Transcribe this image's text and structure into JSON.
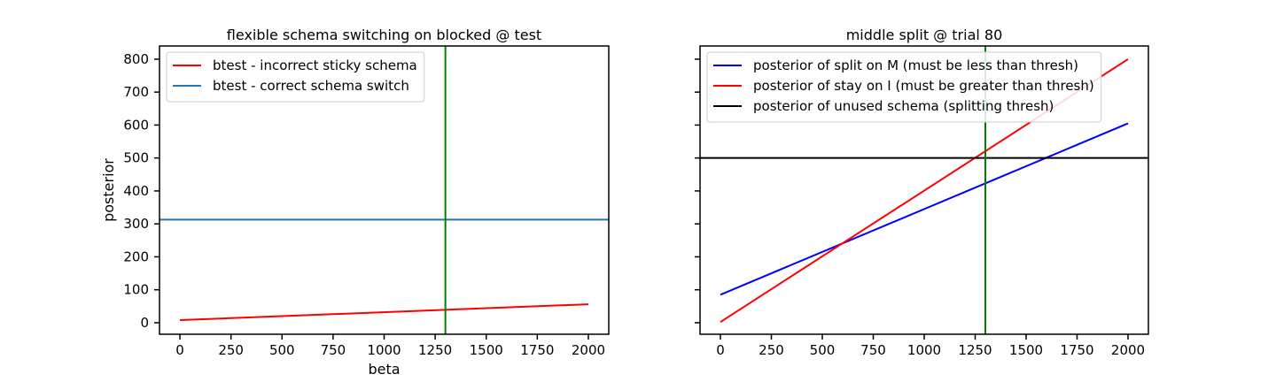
{
  "chart_data": [
    {
      "type": "line",
      "title": "flexible schema switching on blocked @ test",
      "xlabel": "beta",
      "ylabel": "posterior",
      "xlim": [
        -100,
        2100
      ],
      "ylim": [
        -35,
        840
      ],
      "xticks": [
        0,
        250,
        500,
        750,
        1000,
        1250,
        1500,
        1750,
        2000
      ],
      "yticks": [
        0,
        100,
        200,
        300,
        400,
        500,
        600,
        700,
        800
      ],
      "show_ytick_labels": true,
      "grid": false,
      "legend_position": "top-left",
      "series": [
        {
          "name": "btest - incorrect sticky schema",
          "color": "#ff0000",
          "x": [
            0,
            2000
          ],
          "y": [
            8,
            56
          ]
        },
        {
          "name": "btest - correct schema switch",
          "color": "#1f77b4",
          "x": [
            -100,
            2100
          ],
          "y": [
            313,
            313
          ]
        }
      ],
      "vlines": [
        {
          "x": 1300,
          "color": "#008000"
        }
      ],
      "hlines": []
    },
    {
      "type": "line",
      "title": "middle split @ trial 80",
      "xlabel": "",
      "ylabel": "",
      "xlim": [
        -100,
        2100
      ],
      "ylim": [
        -35,
        840
      ],
      "xticks": [
        0,
        250,
        500,
        750,
        1000,
        1250,
        1500,
        1750,
        2000
      ],
      "yticks": [
        0,
        100,
        200,
        300,
        400,
        500,
        600,
        700,
        800
      ],
      "show_ytick_labels": false,
      "grid": false,
      "legend_position": "top-left",
      "series": [
        {
          "name": "posterior of split on M (must be less than thresh)",
          "color": "#0000ff",
          "x": [
            0,
            2000
          ],
          "y": [
            85,
            605
          ]
        },
        {
          "name": "posterior of stay on I (must be greater than thresh)",
          "color": "#ff0000",
          "x": [
            0,
            2000
          ],
          "y": [
            2,
            800
          ]
        },
        {
          "name": "posterior of unused schema (splitting thresh)",
          "color": "#000000",
          "x": [
            -100,
            2100
          ],
          "y": [
            500,
            500
          ]
        }
      ],
      "vlines": [
        {
          "x": 1300,
          "color": "#008000"
        }
      ],
      "hlines": []
    }
  ]
}
